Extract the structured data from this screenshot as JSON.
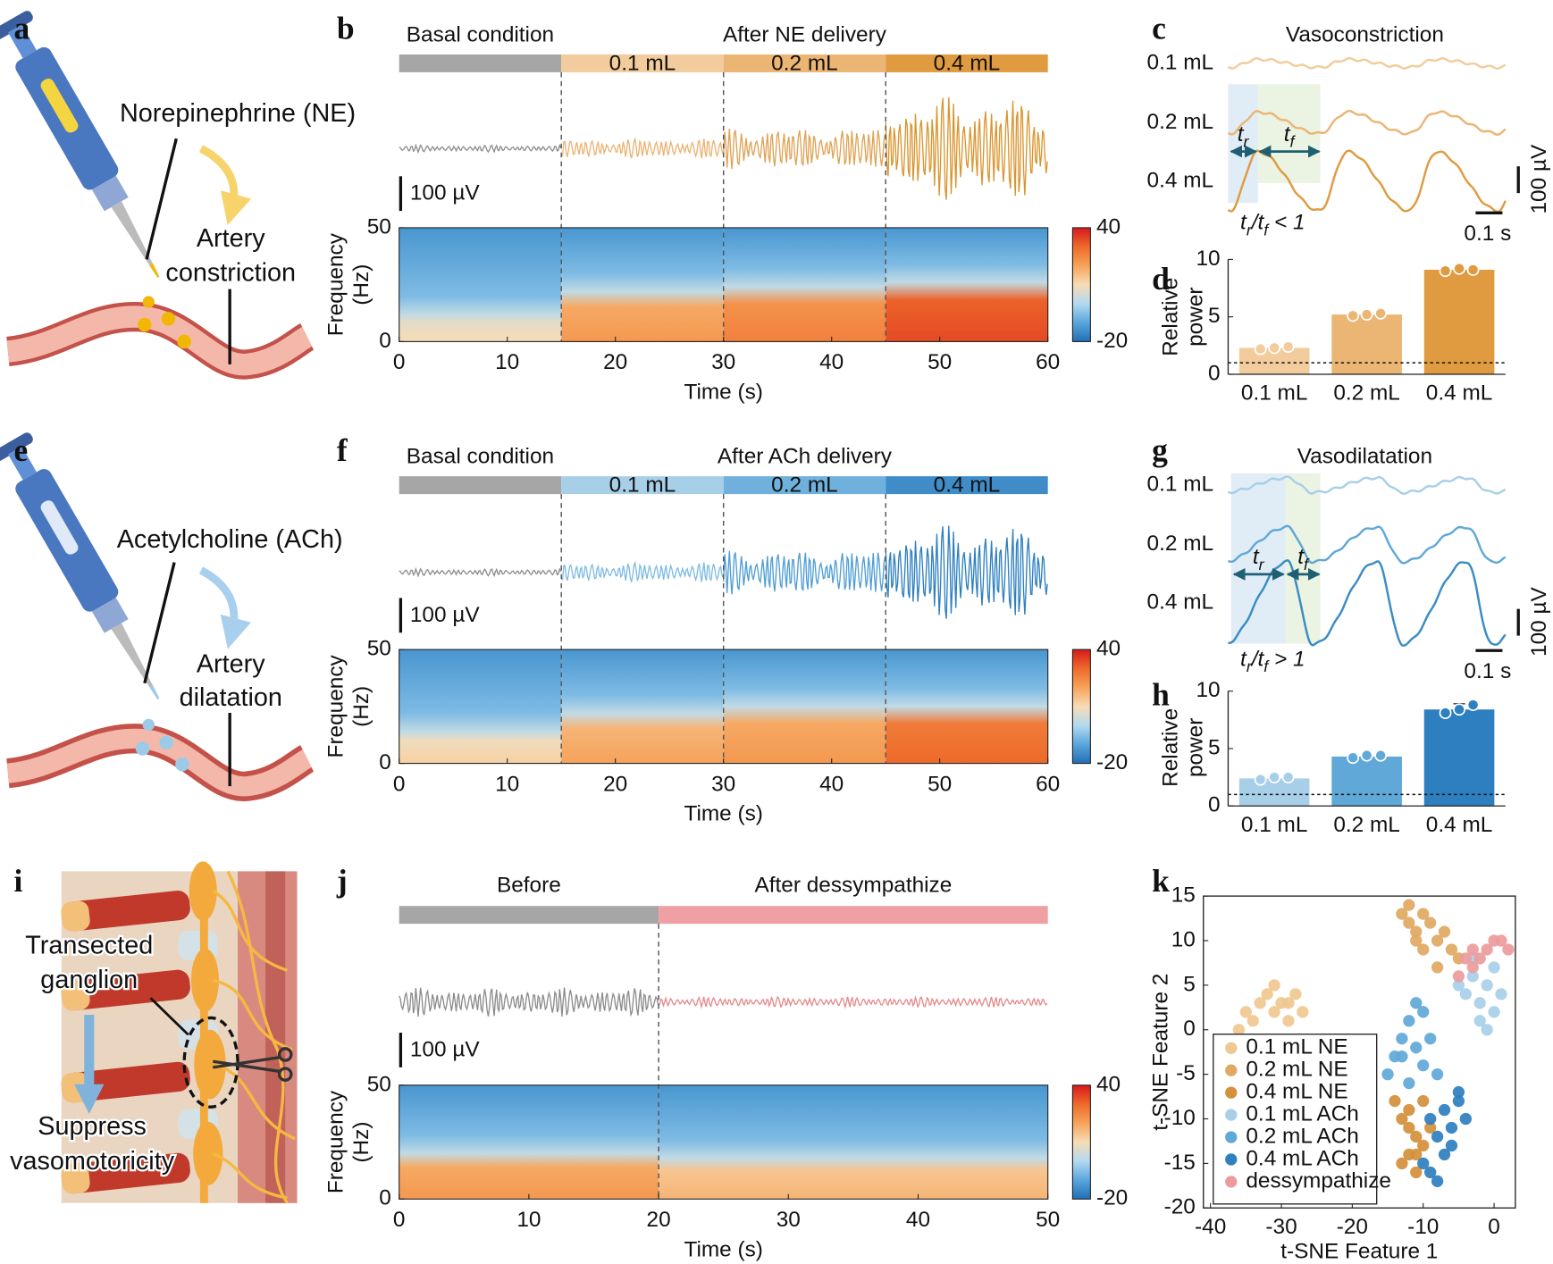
{
  "panel_labels": [
    "a",
    "b",
    "c",
    "d",
    "e",
    "f",
    "g",
    "h",
    "i",
    "j",
    "k"
  ],
  "illustrations": {
    "a": {
      "drug": "Norepinephrine (NE)",
      "effect": [
        "Artery",
        "constriction"
      ]
    },
    "e": {
      "drug": "Acetylcholine (ACh)",
      "effect": [
        "Artery",
        "dilatation"
      ]
    },
    "i": {
      "target": [
        "Transected",
        "ganglion"
      ],
      "effect": [
        "Suppress",
        "vasomotoricity"
      ]
    }
  },
  "chart_data": [
    {
      "type": "recording",
      "header_labels": [
        "Basal condition",
        "After NE delivery"
      ],
      "segment_labels": [
        "0.1 mL",
        "0.2 mL",
        "0.4 mL"
      ],
      "segment_colors": [
        "#a6a6a6",
        "#f2cc9c",
        "#ebb574",
        "#e09a40"
      ],
      "trace_colors": [
        "#8c8c8c",
        "#e8b474",
        "#dfa355",
        "#d9952f"
      ],
      "boundaries": [
        15,
        30,
        45
      ],
      "trace_amplitude": [
        20,
        60,
        130,
        320
      ],
      "scale_bar": {
        "value": 100,
        "label": "100 µV"
      },
      "low_freq_power": [
        10,
        22,
        26,
        34
      ],
      "cutoff": [
        12,
        22,
        24,
        26
      ],
      "xlim": [
        0,
        60
      ],
      "xticks": [
        0,
        10,
        20,
        30,
        40,
        50,
        60
      ],
      "ylim": [
        0,
        50
      ],
      "yticks": [
        0,
        50
      ],
      "xlabel": "Time (s)",
      "ylabel": [
        "Frequency",
        "(Hz)"
      ],
      "clim": [
        -20,
        40
      ],
      "cticks": [
        -20,
        40
      ],
      "colormap": [
        "#1f6fb5",
        "#5aa6dc",
        "#b3daf0",
        "#f7dcb6",
        "#f6a35a",
        "#ee6a2a",
        "#d7191c"
      ]
    },
    {
      "type": "waveform",
      "title": "Vasoconstriction",
      "row_labels": [
        "0.1 mL",
        "0.2 mL",
        "0.4 mL"
      ],
      "colors": [
        "#f2cc9c",
        "#ebb574",
        "#e09a40"
      ],
      "amplitude": [
        30,
        80,
        220
      ],
      "period_s": 0.3,
      "rise_to_fall_ratio": 0.45,
      "duration_s": 0.93,
      "annotations": {
        "rise": "tr",
        "fall": "tf",
        "ratio": "tr/tf < 1"
      },
      "scale_bars": [
        {
          "value": 100,
          "label": "100 µV"
        },
        {
          "value": 0.1,
          "label": "0.1 s"
        }
      ]
    },
    {
      "type": "bar",
      "categories": [
        "0.1 mL",
        "0.2 mL",
        "0.4 mL"
      ],
      "values": [
        2.3,
        5.2,
        9.1
      ],
      "errors": [
        0.1,
        0.15,
        0.15
      ],
      "replicates": [
        [
          2.2,
          2.3,
          2.4
        ],
        [
          5.1,
          5.2,
          5.3
        ],
        [
          9.0,
          9.2,
          9.1
        ]
      ],
      "colors": [
        "#f2cc9c",
        "#ebb574",
        "#e09a40"
      ],
      "ylim": [
        0,
        10
      ],
      "yticks": [
        0,
        5,
        10
      ],
      "ylabel": [
        "Relative",
        "power"
      ],
      "reference_line": 1
    },
    {
      "type": "recording",
      "header_labels": [
        "Basal condition",
        "After ACh delivery"
      ],
      "segment_labels": [
        "0.1 mL",
        "0.2 mL",
        "0.4 mL"
      ],
      "segment_colors": [
        "#a6a6a6",
        "#a8cfe8",
        "#6fb1dc",
        "#3f8cc8"
      ],
      "trace_colors": [
        "#8c8c8c",
        "#7fbbe2",
        "#4f9ed4",
        "#2e7fbf"
      ],
      "boundaries": [
        15,
        30,
        45
      ],
      "trace_amplitude": [
        20,
        60,
        140,
        290
      ],
      "scale_bar": {
        "value": 100,
        "label": "100 µV"
      },
      "low_freq_power": [
        12,
        20,
        22,
        30
      ],
      "cutoff": [
        14,
        22,
        25,
        25
      ],
      "xlim": [
        0,
        60
      ],
      "xticks": [
        0,
        10,
        20,
        30,
        40,
        50,
        60
      ],
      "ylim": [
        0,
        50
      ],
      "yticks": [
        0,
        50
      ],
      "xlabel": "Time (s)",
      "ylabel": [
        "Frequency",
        "(Hz)"
      ],
      "clim": [
        -20,
        40
      ],
      "cticks": [
        -20,
        40
      ],
      "colormap": [
        "#1f6fb5",
        "#5aa6dc",
        "#b3daf0",
        "#f7dcb6",
        "#f6a35a",
        "#ee6a2a",
        "#d7191c"
      ]
    },
    {
      "type": "waveform",
      "title": "Vasodilatation",
      "row_labels": [
        "0.1 mL",
        "0.2 mL",
        "0.4 mL"
      ],
      "colors": [
        "#a8cfe8",
        "#5fa8d8",
        "#3a8cc4"
      ],
      "amplitude": [
        55,
        130,
        310
      ],
      "period_s": 0.3,
      "rise_to_fall_ratio": 2.5,
      "duration_s": 0.93,
      "annotations": {
        "rise": "tr",
        "fall": "tf",
        "ratio": "tr/tf > 1"
      },
      "scale_bars": [
        {
          "value": 100,
          "label": "100 µV"
        },
        {
          "value": 0.1,
          "label": "0.1 s"
        }
      ]
    },
    {
      "type": "bar",
      "categories": [
        "0.1 mL",
        "0.2 mL",
        "0.4 mL"
      ],
      "values": [
        2.4,
        4.3,
        8.4
      ],
      "errors": [
        0.2,
        0.15,
        0.5
      ],
      "replicates": [
        [
          2.3,
          2.5,
          2.5
        ],
        [
          4.2,
          4.4,
          4.4
        ],
        [
          8.1,
          8.4,
          8.8
        ]
      ],
      "colors": [
        "#a8cfe8",
        "#5fa8d8",
        "#2e7fbf"
      ],
      "ylim": [
        0,
        10
      ],
      "yticks": [
        0,
        5,
        10
      ],
      "ylabel": [
        "Relative",
        "power"
      ],
      "reference_line": 1
    },
    {
      "type": "recording",
      "header_labels": [
        "Before",
        "After dessympathize"
      ],
      "segment_colors": [
        "#a6a6a6",
        "#f0a0a2"
      ],
      "trace_colors": [
        "#8c8c8c",
        "#e48a8d"
      ],
      "boundaries": [
        20
      ],
      "trace_amplitude": [
        85,
        30
      ],
      "scale_bar": {
        "value": 100,
        "label": "100 µV"
      },
      "low_freq_power": [
        22,
        17
      ],
      "cutoff": [
        20,
        18
      ],
      "xlim": [
        0,
        50
      ],
      "xticks": [
        0,
        10,
        20,
        30,
        40,
        50
      ],
      "ylim": [
        0,
        50
      ],
      "yticks": [
        0,
        50
      ],
      "xlabel": "Time (s)",
      "ylabel": [
        "Frequency",
        "(Hz)"
      ],
      "clim": [
        -20,
        40
      ],
      "cticks": [
        -20,
        40
      ],
      "colormap": [
        "#1f6fb5",
        "#5aa6dc",
        "#b3daf0",
        "#f7dcb6",
        "#f6a35a",
        "#ee6a2a",
        "#d7191c"
      ]
    },
    {
      "type": "scatter",
      "xlim": [
        -41,
        3
      ],
      "ylim": [
        -20,
        15
      ],
      "xticks": [
        -40,
        -30,
        -20,
        -10,
        0
      ],
      "yticks": [
        -20,
        -15,
        -10,
        -5,
        0,
        5,
        10,
        15
      ],
      "xlabel": "t-SNE Feature 1",
      "ylabel": "t-SNE Feature 2",
      "legend": "lower left",
      "series": [
        {
          "name": "0.1 mL NE",
          "color": "#f0c890",
          "x": [
            -36,
            -35,
            -33,
            -32,
            -31,
            -30,
            -29,
            -28,
            -27,
            -34,
            -31,
            -29
          ],
          "y": [
            0,
            2,
            3,
            4,
            2,
            3,
            1,
            4,
            2,
            1,
            5,
            3
          ]
        },
        {
          "name": "0.2 mL NE",
          "color": "#e0a860",
          "x": [
            -13,
            -12,
            -11,
            -10,
            -9,
            -8,
            -7,
            -6,
            -5,
            -10,
            -11,
            -8,
            -12
          ],
          "y": [
            13,
            12,
            11,
            13,
            12,
            10,
            11,
            9,
            8,
            9,
            10,
            7,
            14
          ]
        },
        {
          "name": "0.4 mL NE",
          "color": "#d4903a",
          "x": [
            -14,
            -13,
            -12,
            -11,
            -12,
            -10,
            -13,
            -11,
            -9,
            -10,
            -12,
            -11
          ],
          "y": [
            -8,
            -10,
            -9,
            -12,
            -14,
            -13,
            -15,
            -16,
            -11,
            -8,
            -11,
            -14
          ]
        },
        {
          "name": "0.1 mL ACh",
          "color": "#a8cfe8",
          "x": [
            -5,
            -4,
            -3,
            -2,
            -1,
            0,
            0,
            -2,
            -3,
            -1,
            1
          ],
          "y": [
            5,
            4,
            6,
            3,
            5,
            2,
            7,
            1,
            8,
            0,
            4
          ]
        },
        {
          "name": "0.2 mL ACh",
          "color": "#5fa8d8",
          "x": [
            -15,
            -14,
            -13,
            -12,
            -11,
            -10,
            -12,
            -9,
            -10,
            -11,
            -13,
            -8
          ],
          "y": [
            -5,
            -3,
            -1,
            1,
            -2,
            -4,
            -6,
            -1,
            2,
            3,
            -3,
            -5
          ]
        },
        {
          "name": "0.4 mL ACh",
          "color": "#2e7fbf",
          "x": [
            -9,
            -8,
            -7,
            -6,
            -5,
            -4,
            -7,
            -9,
            -8,
            -6,
            -5,
            -10
          ],
          "y": [
            -10,
            -12,
            -9,
            -11,
            -8,
            -10,
            -14,
            -16,
            -17,
            -13,
            -7,
            -15
          ]
        },
        {
          "name": "dessympathize",
          "color": "#ec9b9c",
          "x": [
            -5,
            -4,
            -3,
            -2,
            -1,
            0,
            1,
            2,
            -3
          ],
          "y": [
            6,
            8,
            9,
            8,
            9,
            10,
            10,
            9,
            7
          ]
        }
      ]
    }
  ]
}
